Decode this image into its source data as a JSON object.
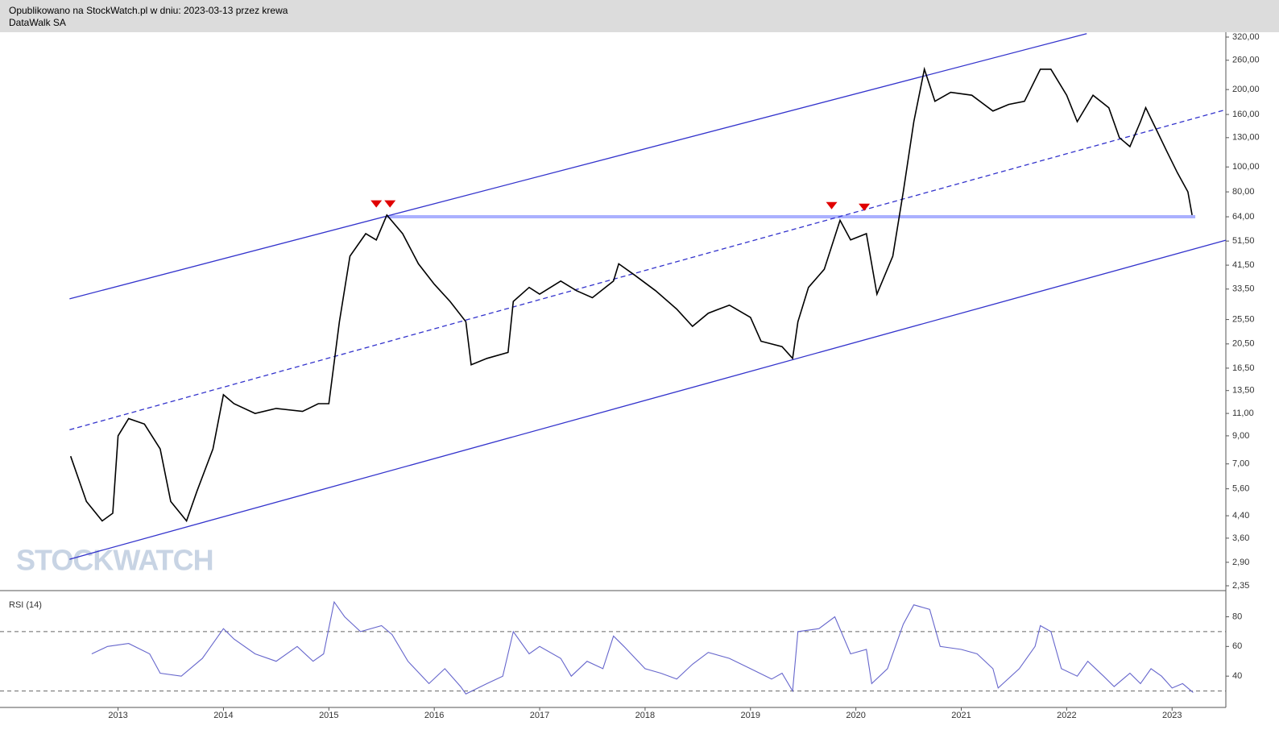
{
  "header": {
    "published": "Opublikowano na StockWatch.pl w dniu: 2023-03-13 przez krewa",
    "instrument": "DataWalk SA"
  },
  "watermark": "STOCKWATCH",
  "chart_data": [
    {
      "type": "line",
      "log_scale": true,
      "color": "#000000",
      "xlim": [
        2011.88,
        2023.51
      ],
      "ylim": [
        2.35,
        320
      ],
      "yticks": [
        {
          "value": 320,
          "label": "320,00"
        },
        {
          "value": 260,
          "label": "260,00"
        },
        {
          "value": 200,
          "label": "200,00"
        },
        {
          "value": 160,
          "label": "160,00"
        },
        {
          "value": 130,
          "label": "130,00"
        },
        {
          "value": 100,
          "label": "100,00"
        },
        {
          "value": 80,
          "label": "80,00"
        },
        {
          "value": 64,
          "label": "64,00"
        },
        {
          "value": 51.5,
          "label": "51,50"
        },
        {
          "value": 41.5,
          "label": "41,50"
        },
        {
          "value": 33.5,
          "label": "33,50"
        },
        {
          "value": 25.5,
          "label": "25,50"
        },
        {
          "value": 20.5,
          "label": "20,50"
        },
        {
          "value": 16.5,
          "label": "16,50"
        },
        {
          "value": 13.5,
          "label": "13,50"
        },
        {
          "value": 11,
          "label": "11,00"
        },
        {
          "value": 9,
          "label": "9,00"
        },
        {
          "value": 7,
          "label": "7,00"
        },
        {
          "value": 5.6,
          "label": "5,60"
        },
        {
          "value": 4.4,
          "label": "4,40"
        },
        {
          "value": 3.6,
          "label": "3,60"
        },
        {
          "value": 2.9,
          "label": "2,90"
        },
        {
          "value": 2.35,
          "label": "2,35"
        }
      ],
      "x": [
        2012.55,
        2012.7,
        2012.85,
        2012.95,
        2013.0,
        2013.1,
        2013.25,
        2013.4,
        2013.5,
        2013.65,
        2013.75,
        2013.9,
        2014.0,
        2014.1,
        2014.3,
        2014.5,
        2014.75,
        2014.9,
        2015.0,
        2015.1,
        2015.2,
        2015.35,
        2015.45,
        2015.55,
        2015.7,
        2015.85,
        2016.0,
        2016.15,
        2016.3,
        2016.35,
        2016.5,
        2016.7,
        2016.75,
        2016.9,
        2017.0,
        2017.2,
        2017.35,
        2017.5,
        2017.7,
        2017.75,
        2017.9,
        2018.1,
        2018.3,
        2018.45,
        2018.6,
        2018.8,
        2019.0,
        2019.1,
        2019.3,
        2019.4,
        2019.45,
        2019.55,
        2019.7,
        2019.85,
        2019.95,
        2020.1,
        2020.2,
        2020.35,
        2020.45,
        2020.55,
        2020.65,
        2020.75,
        2020.9,
        2021.1,
        2021.3,
        2021.45,
        2021.6,
        2021.75,
        2021.85,
        2022.0,
        2022.1,
        2022.25,
        2022.4,
        2022.5,
        2022.6,
        2022.7,
        2022.75,
        2022.85,
        2022.95,
        2023.05,
        2023.15,
        2023.19
      ],
      "values": [
        7.5,
        5,
        4.2,
        4.5,
        9,
        10.5,
        10,
        8,
        5,
        4.2,
        5.5,
        8,
        13,
        12,
        11,
        11.5,
        11.2,
        12,
        12,
        25,
        45,
        55,
        52,
        65,
        55,
        42,
        35,
        30,
        25,
        17,
        18,
        19,
        30,
        34,
        32,
        36,
        33,
        31,
        36,
        42,
        38,
        33,
        28,
        24,
        27,
        29,
        26,
        21,
        20,
        18,
        25,
        34,
        40,
        62,
        52,
        55,
        32,
        45,
        80,
        150,
        240,
        180,
        195,
        190,
        165,
        175,
        180,
        240,
        240,
        190,
        150,
        190,
        170,
        130,
        120,
        150,
        170,
        140,
        115,
        95,
        80,
        65
      ],
      "trendlines": [
        {
          "x": [
            2012.54,
            2022.19
          ],
          "y": [
            30.7,
            330
          ],
          "color": "#3333cc",
          "dashed": false
        },
        {
          "x": [
            2012.54,
            2023.51
          ],
          "y": [
            9.5,
            167
          ],
          "color": "#3333cc",
          "dashed": true
        },
        {
          "x": [
            2012.54,
            2023.51
          ],
          "y": [
            2.98,
            51.9
          ],
          "color": "#3333cc",
          "dashed": false
        }
      ],
      "level": {
        "value": 64,
        "x": [
          2015.55,
          2023.22
        ],
        "color": "#aab0ff"
      },
      "markers": {
        "x": [
          2015.45,
          2015.58,
          2019.77,
          2020.08
        ],
        "y": [
          68,
          68,
          67,
          66
        ],
        "color": "#e00000"
      }
    },
    {
      "type": "line",
      "label": "RSI (14)",
      "color": "#6666cc",
      "xlim": [
        2011.88,
        2023.51
      ],
      "ylim": [
        20,
        96
      ],
      "xticks": [
        2013,
        2014,
        2015,
        2016,
        2017,
        2018,
        2019,
        2020,
        2021,
        2022,
        2023
      ],
      "yticks": [
        40,
        60,
        80
      ],
      "levels": [
        30,
        70
      ],
      "x": [
        2012.75,
        2012.9,
        2013.1,
        2013.3,
        2013.4,
        2013.6,
        2013.8,
        2014.0,
        2014.1,
        2014.3,
        2014.5,
        2014.7,
        2014.85,
        2014.95,
        2015.05,
        2015.15,
        2015.3,
        2015.5,
        2015.6,
        2015.75,
        2015.95,
        2016.1,
        2016.25,
        2016.3,
        2016.5,
        2016.65,
        2016.75,
        2016.9,
        2017.0,
        2017.2,
        2017.3,
        2017.45,
        2017.6,
        2017.7,
        2017.8,
        2018.0,
        2018.15,
        2018.3,
        2018.45,
        2018.6,
        2018.8,
        2019.0,
        2019.2,
        2019.3,
        2019.4,
        2019.45,
        2019.65,
        2019.8,
        2019.95,
        2020.1,
        2020.15,
        2020.3,
        2020.45,
        2020.55,
        2020.7,
        2020.8,
        2021.0,
        2021.15,
        2021.3,
        2021.35,
        2021.55,
        2021.7,
        2021.75,
        2021.85,
        2021.95,
        2022.1,
        2022.2,
        2022.35,
        2022.45,
        2022.6,
        2022.7,
        2022.8,
        2022.9,
        2023.0,
        2023.1,
        2023.2
      ],
      "values": [
        55,
        60,
        62,
        55,
        42,
        40,
        52,
        72,
        65,
        55,
        50,
        60,
        50,
        55,
        90,
        80,
        70,
        74,
        68,
        50,
        35,
        45,
        33,
        28,
        35,
        40,
        70,
        55,
        60,
        52,
        40,
        50,
        45,
        67,
        60,
        45,
        42,
        38,
        48,
        56,
        52,
        45,
        38,
        42,
        30,
        70,
        72,
        80,
        55,
        58,
        35,
        45,
        75,
        88,
        85,
        60,
        58,
        55,
        45,
        32,
        45,
        60,
        74,
        70,
        45,
        40,
        50,
        40,
        33,
        42,
        35,
        45,
        40,
        32,
        35,
        29
      ]
    }
  ]
}
